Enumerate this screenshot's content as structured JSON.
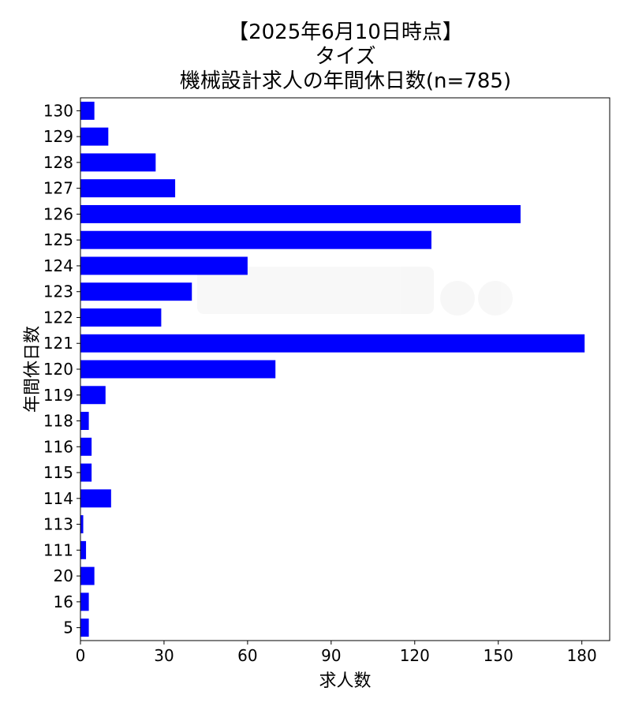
{
  "title_lines": [
    "【2025年6月10日時点】",
    "タイズ",
    "機械設計求人の年間休日数(n=785)"
  ],
  "chart_data": {
    "type": "bar",
    "orientation": "horizontal",
    "categories": [
      "130",
      "129",
      "128",
      "127",
      "126",
      "125",
      "124",
      "123",
      "122",
      "121",
      "120",
      "119",
      "118",
      "116",
      "115",
      "114",
      "113",
      "111",
      "20",
      "16",
      "5"
    ],
    "values": [
      5,
      10,
      27,
      34,
      158,
      126,
      60,
      40,
      29,
      181,
      70,
      9,
      3,
      4,
      4,
      11,
      1,
      2,
      5,
      3,
      3
    ],
    "xlabel": "求人数",
    "ylabel": "年間休日数",
    "xlim": [
      0,
      190
    ],
    "xticks": [
      0,
      30,
      60,
      90,
      120,
      150,
      180
    ],
    "bar_color": "#0000ff",
    "grid": false,
    "legend": false
  },
  "watermark_text": "電気制御屋 Job ジョブ"
}
